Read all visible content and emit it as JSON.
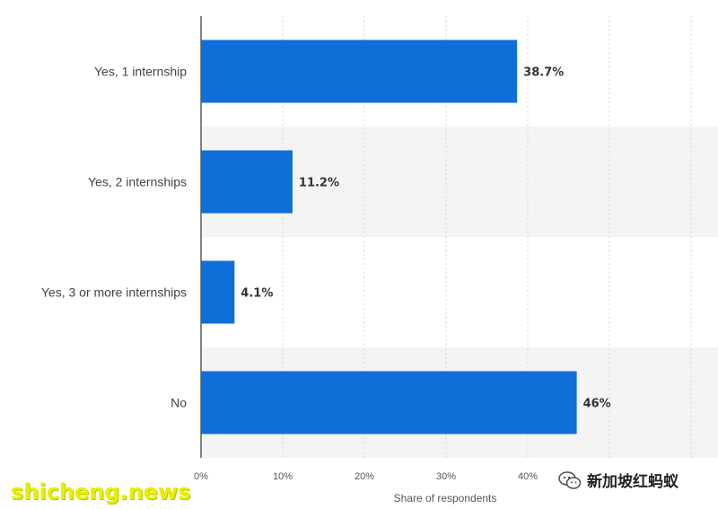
{
  "chart_data": {
    "type": "bar",
    "orientation": "horizontal",
    "categories": [
      "Yes, 1 internship",
      "Yes, 2 internships",
      "Yes, 3 or more internships",
      "No"
    ],
    "values": [
      38.7,
      11.2,
      4.1,
      46
    ],
    "value_labels": [
      "38.7%",
      "11.2%",
      "4.1%",
      "46%"
    ],
    "xlabel": "Share of respondents",
    "xlim": [
      0,
      60
    ],
    "xticks": [
      "0%",
      "10%",
      "20%",
      "30%",
      "40%"
    ],
    "grid": "vertical-dashed",
    "bar_color": "#0f6fd8"
  },
  "watermarks": {
    "left": "shicheng.news",
    "right": "新加坡红蚂蚁"
  }
}
